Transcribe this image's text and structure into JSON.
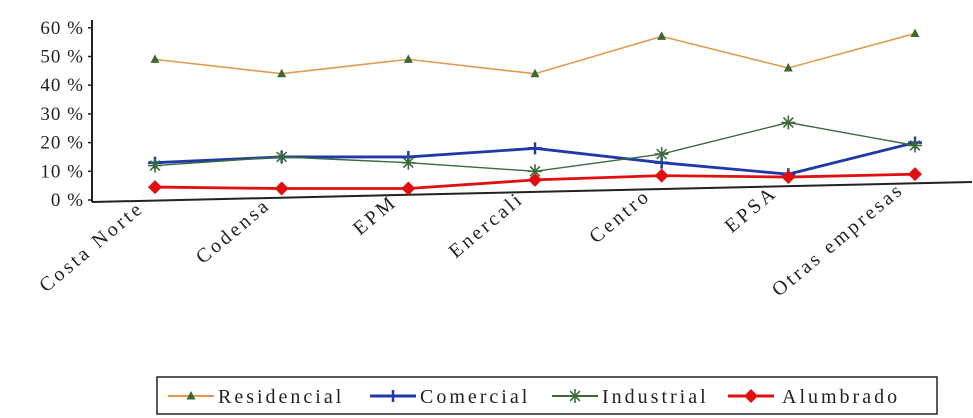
{
  "chart_data": {
    "type": "line",
    "categories": [
      "Costa Norte",
      "Codensa",
      "EPM",
      "Enercali",
      "Centro",
      "EPSA",
      "Otras empresas"
    ],
    "y_tick_labels": [
      "0 %",
      "10 %",
      "20 %",
      "30 %",
      "40 %",
      "50 %",
      "60 %"
    ],
    "ylim": [
      0,
      60
    ],
    "legend_position": "bottom",
    "grid": false,
    "series": [
      {
        "name": "Residencial",
        "values": [
          49,
          44,
          49,
          44,
          57,
          46,
          58
        ],
        "color": "#e39a4e",
        "marker": "triangle"
      },
      {
        "name": "Comercial",
        "values": [
          13,
          15,
          15,
          18,
          13,
          9,
          20
        ],
        "color": "#1f3aa8",
        "marker": "plus"
      },
      {
        "name": "Industrial",
        "values": [
          12,
          15,
          13,
          10,
          16,
          27,
          19
        ],
        "color": "#3b6b3b",
        "marker": "star"
      },
      {
        "name": "Alumbrado",
        "values": [
          4.5,
          4,
          4,
          7,
          8.5,
          8,
          9
        ],
        "color": "#e01010",
        "marker": "diamond"
      }
    ]
  }
}
